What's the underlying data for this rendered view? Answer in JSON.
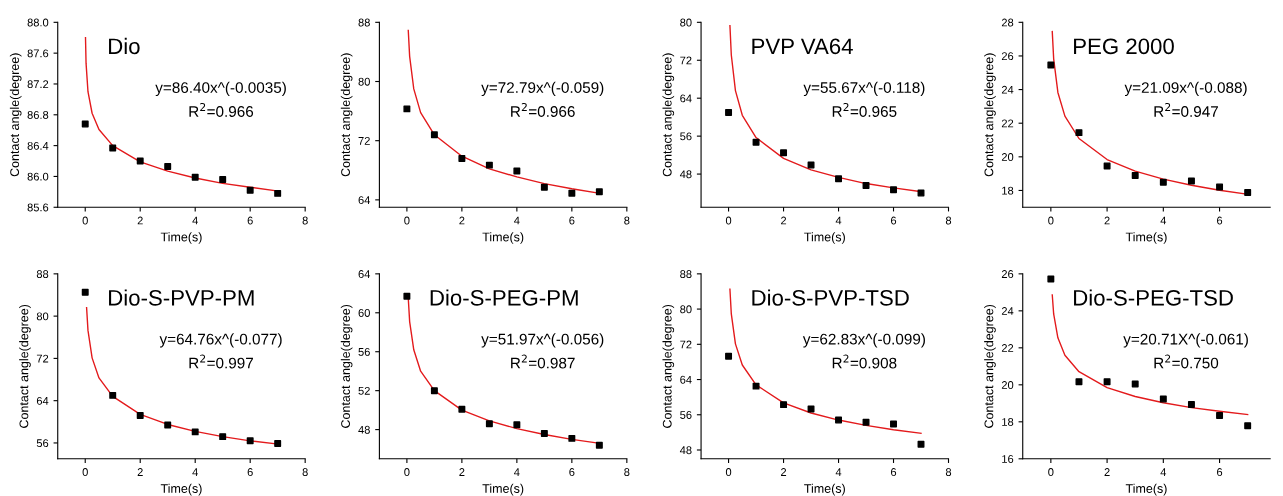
{
  "chart_data": [
    {
      "type": "scatter",
      "title": "Dio",
      "xlabel": "Time(s)",
      "ylabel": "Contact angle(degree)",
      "xlim": [
        -1,
        8
      ],
      "xticks": [
        0,
        2,
        4,
        6,
        8
      ],
      "ylim": [
        85.6,
        88.0
      ],
      "yticks": [
        {
          "value": 85.6,
          "label": "85.6"
        },
        {
          "value": 86.0,
          "label": "86.0"
        },
        {
          "value": 86.4,
          "label": "86.4"
        },
        {
          "value": 86.8,
          "label": "86.8"
        },
        {
          "value": 87.2,
          "label": "87.2"
        },
        {
          "value": 87.6,
          "label": "87.6"
        },
        {
          "value": 88.0,
          "label": "88.0"
        }
      ],
      "annotations": [
        "y=86.40x^(-0.0035)",
        "R$^{2}$=0.966"
      ],
      "grid": false,
      "series": [
        {
          "color": "#000000",
          "marker": "square",
          "x": [
            0,
            1,
            2,
            3,
            4,
            5,
            6,
            7
          ],
          "values": [
            86.68,
            86.37,
            86.2,
            86.13,
            85.99,
            85.96,
            85.82,
            85.78
          ]
        },
        {
          "type": "line",
          "marker": "none",
          "color": "#e31a1c",
          "x": [
            0.01,
            0.03,
            0.1,
            0.25,
            0.5,
            1,
            2,
            3,
            4,
            5,
            6,
            7
          ],
          "values": [
            87.8,
            87.47,
            87.1,
            86.82,
            86.61,
            86.4,
            86.19,
            86.07,
            85.98,
            85.91,
            85.86,
            85.81
          ]
        }
      ]
    },
    {
      "type": "scatter",
      "xlabel": "Time(s)",
      "ylabel": "Contact angle(degree)",
      "xlim": [
        -1,
        8
      ],
      "xticks": [
        0,
        2,
        4,
        6,
        8
      ],
      "ylim": [
        63,
        88
      ],
      "yticks": [
        64,
        72,
        80,
        88
      ],
      "annotations": [
        "y=72.79x^(-0.059)",
        "R$^{2}$=0.966"
      ],
      "grid": false,
      "series": [
        {
          "color": "#000000",
          "marker": "square",
          "x": [
            0,
            1,
            2,
            3,
            4,
            5,
            6,
            7
          ],
          "values": [
            76.3,
            72.8,
            69.6,
            68.7,
            67.9,
            65.7,
            64.9,
            65.1
          ]
        },
        {
          "type": "line",
          "marker": "none",
          "color": "#e31a1c",
          "x": [
            0.05,
            0.1,
            0.25,
            0.5,
            1,
            2,
            3,
            4,
            5,
            6,
            7
          ],
          "values": [
            86.9,
            83.4,
            79.0,
            75.8,
            72.8,
            69.9,
            68.2,
            67.1,
            66.2,
            65.5,
            64.9
          ]
        }
      ]
    },
    {
      "type": "scatter",
      "title": "PVP VA64",
      "xlabel": "Time(s)",
      "ylabel": "Contact angle(degree)",
      "xlim": [
        -1,
        8
      ],
      "xticks": [
        0,
        2,
        4,
        6,
        8
      ],
      "ylim": [
        41,
        80
      ],
      "yticks": [
        48,
        56,
        64,
        72,
        80
      ],
      "annotations": [
        "y=55.67x^(-0.118)",
        "R$^{2}$=0.965"
      ],
      "grid": false,
      "series": [
        {
          "color": "#000000",
          "marker": "square",
          "x": [
            0,
            1,
            2,
            3,
            4,
            5,
            6,
            7
          ],
          "values": [
            61.0,
            54.7,
            52.5,
            49.9,
            47.0,
            45.6,
            44.7,
            44.0
          ]
        },
        {
          "type": "line",
          "marker": "none",
          "color": "#e31a1c",
          "x": [
            0.05,
            0.1,
            0.25,
            0.5,
            1,
            2,
            3,
            4,
            5,
            6,
            7
          ],
          "values": [
            79.3,
            73.1,
            65.6,
            60.4,
            55.7,
            51.3,
            48.9,
            47.3,
            46.0,
            45.1,
            44.3
          ]
        }
      ]
    },
    {
      "type": "scatter",
      "title": "PEG 2000",
      "xlabel": "Time(s)",
      "ylabel": "Contact angle(degree)",
      "xlim": [
        -1,
        7.8
      ],
      "xticks": [
        0,
        2,
        4,
        6
      ],
      "ylim": [
        17,
        28
      ],
      "yticks": [
        18,
        20,
        22,
        24,
        26,
        28
      ],
      "annotations": [
        "y=21.09x^(-0.088)",
        "R$^{2}$=0.947"
      ],
      "grid": false,
      "series": [
        {
          "color": "#000000",
          "marker": "square",
          "x": [
            0,
            1,
            2,
            3,
            4,
            5,
            6,
            7
          ],
          "values": [
            25.46,
            21.44,
            19.46,
            18.89,
            18.49,
            18.56,
            18.21,
            17.88
          ]
        },
        {
          "type": "line",
          "marker": "none",
          "color": "#e31a1c",
          "x": [
            0.05,
            0.1,
            0.25,
            0.5,
            1,
            2,
            3,
            4,
            5,
            6,
            7
          ],
          "values": [
            27.45,
            25.83,
            23.83,
            22.42,
            21.09,
            19.84,
            19.15,
            18.67,
            18.31,
            18.01,
            17.77
          ]
        }
      ]
    },
    {
      "type": "scatter",
      "title": "Dio-S-PVP-PM",
      "xlabel": "Time(s)",
      "ylabel": "Contact angle(degree)",
      "xlim": [
        -1,
        8
      ],
      "xticks": [
        0,
        2,
        4,
        6,
        8
      ],
      "ylim": [
        53,
        88
      ],
      "yticks": [
        56,
        64,
        72,
        80,
        88
      ],
      "annotations": [
        "y=64.76x^(-0.077)",
        "R$^{2}$=0.997"
      ],
      "grid": false,
      "series": [
        {
          "color": "#000000",
          "marker": "square",
          "x": [
            0,
            1,
            2,
            3,
            4,
            5,
            6,
            7
          ],
          "values": [
            84.5,
            65.0,
            61.2,
            59.4,
            58.1,
            57.2,
            56.4,
            55.9
          ]
        },
        {
          "type": "line",
          "marker": "none",
          "color": "#e31a1c",
          "x": [
            0.05,
            0.1,
            0.25,
            0.5,
            1,
            2,
            3,
            4,
            5,
            6,
            7
          ],
          "values": [
            81.6,
            77.3,
            72.1,
            68.3,
            64.8,
            61.4,
            59.5,
            58.2,
            57.2,
            56.4,
            55.8
          ]
        }
      ]
    },
    {
      "type": "scatter",
      "title": "Dio-S-PEG-PM",
      "xlabel": "Time(s)",
      "ylabel": "Contact angle(degree)",
      "xlim": [
        -1,
        8
      ],
      "xticks": [
        0,
        2,
        4,
        6,
        8
      ],
      "ylim": [
        45,
        64
      ],
      "yticks": [
        48,
        52,
        56,
        60,
        64
      ],
      "annotations": [
        "y=51.97x^(-0.056)",
        "R$^{2}$=0.987"
      ],
      "grid": false,
      "series": [
        {
          "color": "#000000",
          "marker": "square",
          "x": [
            0,
            1,
            2,
            3,
            4,
            5,
            6,
            7
          ],
          "values": [
            61.7,
            52.0,
            50.1,
            48.6,
            48.5,
            47.6,
            47.1,
            46.4
          ]
        },
        {
          "type": "line",
          "marker": "none",
          "color": "#e31a1c",
          "x": [
            0.05,
            0.1,
            0.25,
            0.5,
            1,
            2,
            3,
            4,
            5,
            6,
            7
          ],
          "values": [
            61.5,
            59.1,
            56.2,
            54.0,
            52.0,
            50.0,
            48.9,
            48.1,
            47.5,
            47.0,
            46.6
          ]
        }
      ]
    },
    {
      "type": "scatter",
      "title": "Dio-S-PVP-TSD",
      "xlabel": "Time(s)",
      "ylabel": "Contact angle(degree)",
      "xlim": [
        -1,
        8
      ],
      "xticks": [
        0,
        2,
        4,
        6,
        8
      ],
      "ylim": [
        46,
        88
      ],
      "yticks": [
        48,
        56,
        64,
        72,
        80,
        88
      ],
      "annotations": [
        "y=62.83x^(-0.099)",
        "R$^{2}$=0.908"
      ],
      "grid": false,
      "series": [
        {
          "color": "#000000",
          "marker": "square",
          "x": [
            0,
            1,
            2,
            3,
            4,
            5,
            6,
            7
          ],
          "values": [
            69.3,
            62.5,
            58.3,
            57.3,
            54.8,
            54.3,
            53.9,
            49.3
          ]
        },
        {
          "type": "line",
          "marker": "none",
          "color": "#e31a1c",
          "x": [
            0.05,
            0.1,
            0.25,
            0.5,
            1,
            2,
            3,
            4,
            5,
            6,
            7
          ],
          "values": [
            84.5,
            78.9,
            72.1,
            67.3,
            62.8,
            58.7,
            56.4,
            54.8,
            53.6,
            52.6,
            51.8
          ]
        }
      ]
    },
    {
      "type": "scatter",
      "title": "Dio-S-PEG-TSD",
      "xlabel": "Time(s)",
      "ylabel": "Contact angle(degree)",
      "xlim": [
        -1,
        7.8
      ],
      "xticks": [
        0,
        2,
        4,
        6
      ],
      "ylim": [
        16,
        26
      ],
      "yticks": [
        16,
        18,
        20,
        22,
        24,
        26
      ],
      "annotations": [
        "y=20.71X^(-0.061)",
        "R$^{2}$=0.750"
      ],
      "grid": false,
      "series": [
        {
          "color": "#000000",
          "marker": "square",
          "x": [
            0,
            1,
            2,
            3,
            4,
            5,
            6,
            7
          ],
          "values": [
            25.72,
            20.17,
            20.17,
            20.04,
            19.23,
            18.94,
            18.34,
            17.79
          ]
        },
        {
          "type": "line",
          "marker": "none",
          "color": "#e31a1c",
          "x": [
            0.05,
            0.1,
            0.25,
            0.5,
            1,
            2,
            3,
            4,
            5,
            6,
            7
          ],
          "values": [
            24.86,
            23.83,
            22.54,
            21.6,
            20.71,
            19.85,
            19.37,
            19.03,
            18.77,
            18.57,
            18.39
          ]
        }
      ]
    }
  ]
}
